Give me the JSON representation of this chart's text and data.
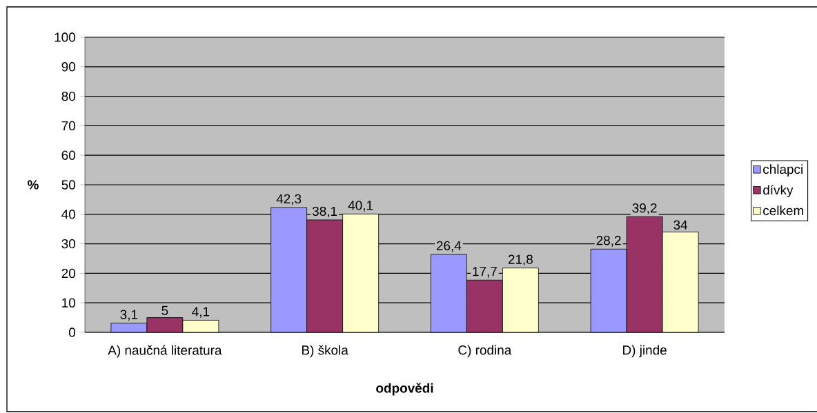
{
  "chart_data": {
    "type": "bar",
    "xlabel": "odpovědi",
    "ylabel": "%",
    "categories": [
      "A) naučná literatura",
      "B) škola",
      "C) rodina",
      "D) jinde"
    ],
    "series": [
      {
        "name": "chlapci",
        "color": "#9999ff",
        "values": [
          3.1,
          42.3,
          26.4,
          28.2
        ],
        "value_labels": [
          "3,1",
          "42,3",
          "26,4",
          "28,2"
        ]
      },
      {
        "name": "dívky",
        "color": "#993366",
        "values": [
          5,
          38.1,
          17.7,
          39.2
        ],
        "value_labels": [
          "5",
          "38,1",
          "17,7",
          "39,2"
        ]
      },
      {
        "name": "celkem",
        "color": "#ffffcc",
        "values": [
          4.1,
          40.1,
          21.8,
          34
        ],
        "value_labels": [
          "4,1",
          "40,1",
          "21,8",
          "34"
        ]
      }
    ],
    "ylim": [
      0,
      100
    ],
    "yticks": [
      0,
      10,
      20,
      30,
      40,
      50,
      60,
      70,
      80,
      90,
      100
    ],
    "grid": "y",
    "legend": "right"
  }
}
